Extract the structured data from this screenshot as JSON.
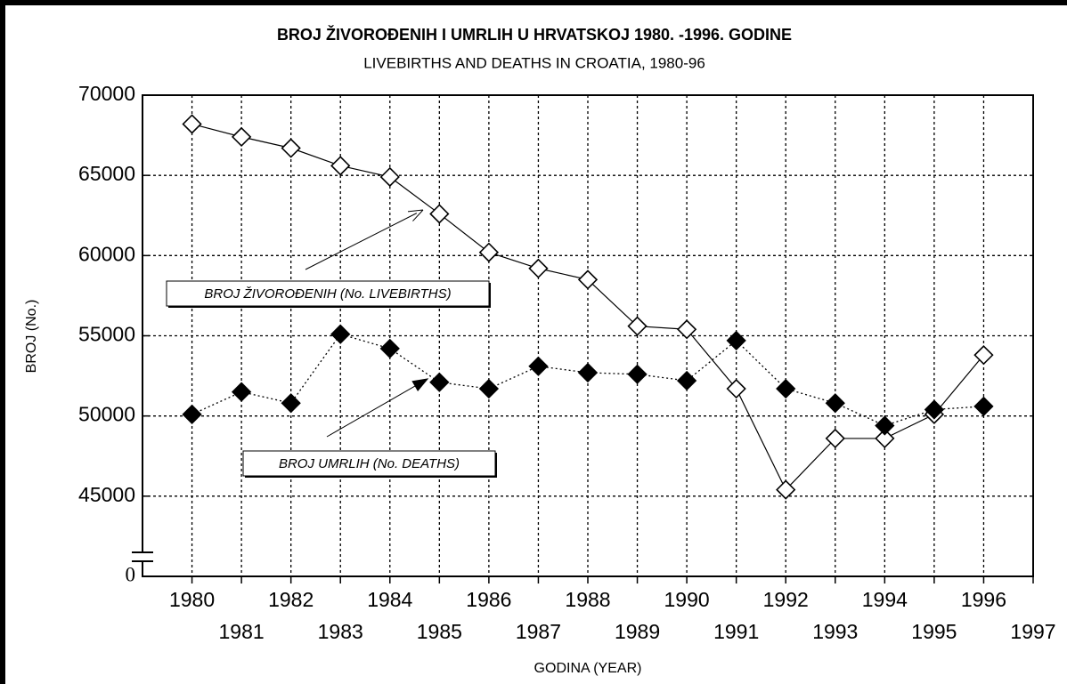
{
  "chart_data": {
    "type": "line",
    "title": "BROJ ŽIVOROĐENIH I UMRLIH U HRVATSKOJ 1980. -1996. GODINE",
    "subtitle": "LIVEBIRTHS AND DEATHS IN CROATIA, 1980-96",
    "x_label": "GODINA (YEAR)",
    "y_label": "BROJ (No.)",
    "x": [
      1980,
      1981,
      1982,
      1983,
      1984,
      1985,
      1986,
      1987,
      1988,
      1989,
      1990,
      1991,
      1992,
      1993,
      1994,
      1995,
      1996
    ],
    "series": [
      {
        "name": "BROJ ŽIVOROĐENIH (No. LIVEBIRTHS)",
        "color": "#000000",
        "marker": "open-diamond",
        "line": "solid",
        "values": [
          68200,
          67400,
          66700,
          65600,
          64900,
          62600,
          60200,
          59200,
          58500,
          55600,
          55400,
          51700,
          45400,
          48600,
          48600,
          50100,
          53800
        ]
      },
      {
        "name": "BROJ UMRLIH (No. DEATHS)",
        "color": "#000000",
        "marker": "filled-diamond",
        "line": "dotted",
        "values": [
          50100,
          51500,
          50800,
          55100,
          54200,
          52100,
          51700,
          53100,
          52700,
          52600,
          52200,
          54700,
          51700,
          50800,
          49400,
          50400,
          50600
        ]
      }
    ],
    "xlim": [
      1979,
      1997
    ],
    "xticks": [
      1980,
      1981,
      1982,
      1983,
      1984,
      1985,
      1986,
      1987,
      1988,
      1989,
      1990,
      1991,
      1992,
      1993,
      1994,
      1995,
      1996,
      1997
    ],
    "ylim": [
      0,
      70000
    ],
    "y_break": [
      0,
      40000
    ],
    "yticks": [
      0,
      45000,
      50000,
      55000,
      60000,
      65000,
      70000
    ],
    "grid": true
  }
}
